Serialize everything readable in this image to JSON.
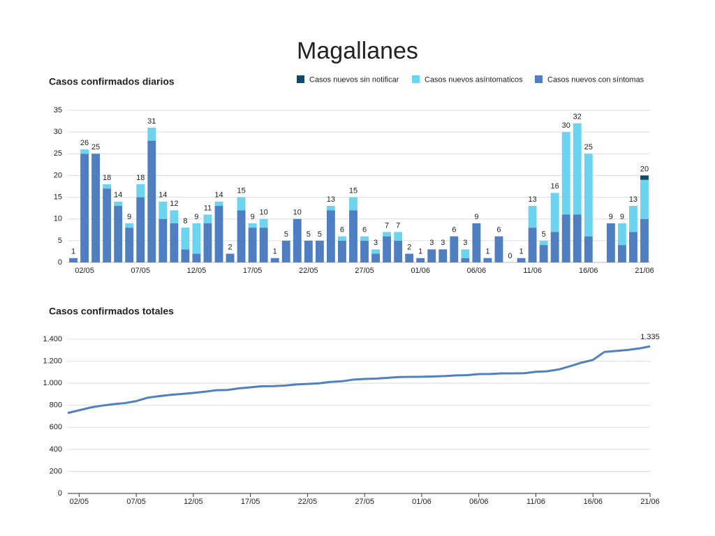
{
  "title": "Magallanes",
  "chart_data": [
    {
      "type": "stacked-bar",
      "title": "Casos confirmados diarios",
      "categories": [
        null,
        "02/05",
        null,
        null,
        null,
        null,
        "07/05",
        null,
        null,
        null,
        null,
        "12/05",
        null,
        null,
        null,
        null,
        "17/05",
        null,
        null,
        null,
        null,
        "22/05",
        null,
        null,
        null,
        null,
        "27/05",
        null,
        null,
        null,
        null,
        "01/06",
        null,
        null,
        null,
        null,
        "06/06",
        null,
        null,
        null,
        null,
        "11/06",
        null,
        null,
        null,
        null,
        "16/06",
        null,
        null,
        null,
        null,
        "21/06"
      ],
      "series": [
        {
          "name": "Casos nuevos sin notificar",
          "color": "#0d4a6b",
          "values": [
            0,
            0,
            0,
            0,
            0,
            0,
            0,
            0,
            0,
            0,
            0,
            0,
            0,
            0,
            0,
            0,
            0,
            0,
            0,
            0,
            0,
            0,
            0,
            0,
            0,
            0,
            0,
            0,
            0,
            0,
            0,
            0,
            0,
            0,
            0,
            0,
            0,
            0,
            0,
            0,
            0,
            0,
            0,
            0,
            0,
            0,
            0,
            null,
            0,
            0,
            0,
            1
          ]
        },
        {
          "name": "Casos nuevos asíntomaticos",
          "color": "#6dd4ef",
          "values": [
            0,
            1,
            0,
            1,
            1,
            1,
            3,
            3,
            4,
            3,
            5,
            7,
            2,
            1,
            0,
            3,
            1,
            2,
            0,
            0,
            0,
            0,
            0,
            1,
            1,
            3,
            1,
            1,
            1,
            2,
            0,
            0,
            0,
            0,
            0,
            2,
            0,
            0,
            0,
            0,
            0,
            5,
            1,
            9,
            19,
            21,
            19,
            null,
            0,
            5,
            6,
            9
          ]
        },
        {
          "name": "Casos nuevos con síntomas",
          "color": "#4f7fc0",
          "values": [
            1,
            25,
            25,
            17,
            13,
            8,
            15,
            28,
            10,
            9,
            3,
            2,
            9,
            13,
            2,
            12,
            8,
            8,
            1,
            5,
            10,
            5,
            5,
            12,
            5,
            12,
            5,
            2,
            6,
            5,
            2,
            1,
            3,
            3,
            6,
            1,
            9,
            1,
            6,
            0,
            1,
            8,
            4,
            7,
            11,
            11,
            6,
            null,
            9,
            4,
            7,
            10
          ]
        }
      ],
      "totals": [
        1,
        26,
        25,
        18,
        14,
        9,
        18,
        31,
        14,
        12,
        8,
        9,
        11,
        14,
        2,
        15,
        9,
        10,
        1,
        5,
        10,
        5,
        5,
        13,
        6,
        15,
        6,
        3,
        7,
        7,
        2,
        1,
        3,
        3,
        6,
        3,
        9,
        1,
        6,
        0,
        1,
        13,
        5,
        16,
        30,
        32,
        25,
        null,
        9,
        9,
        13,
        20
      ],
      "ylim": [
        0,
        35
      ],
      "yticks": [
        0,
        5,
        10,
        15,
        20,
        25,
        30,
        35
      ],
      "grid": true,
      "legend": "top-right"
    },
    {
      "type": "line",
      "title": "Casos confirmados totales",
      "categories": [
        null,
        "02/05",
        null,
        null,
        null,
        null,
        "07/05",
        null,
        null,
        null,
        null,
        "12/05",
        null,
        null,
        null,
        null,
        "17/05",
        null,
        null,
        null,
        null,
        "22/05",
        null,
        null,
        null,
        null,
        "27/05",
        null,
        null,
        null,
        null,
        "01/06",
        null,
        null,
        null,
        null,
        "06/06",
        null,
        null,
        null,
        null,
        "11/06",
        null,
        null,
        null,
        null,
        "16/06",
        null,
        null,
        null,
        null,
        "21/06"
      ],
      "color": "#4f81bd",
      "values": [
        730,
        755,
        780,
        797,
        810,
        820,
        838,
        869,
        883,
        895,
        903,
        912,
        923,
        937,
        939,
        954,
        963,
        973,
        974,
        979,
        989,
        994,
        999,
        1012,
        1018,
        1033,
        1039,
        1042,
        1049,
        1056,
        1058,
        1059,
        1062,
        1065,
        1071,
        1074,
        1083,
        1084,
        1090,
        1090,
        1091,
        1104,
        1109,
        1125,
        1155,
        1187,
        1212,
        1284,
        1293,
        1302,
        1315,
        1335
      ],
      "value_labels": [
        null,
        null,
        null,
        null,
        null,
        null,
        null,
        null,
        null,
        null,
        null,
        null,
        null,
        null,
        null,
        null,
        null,
        null,
        null,
        null,
        null,
        null,
        null,
        null,
        null,
        null,
        null,
        null,
        null,
        null,
        null,
        null,
        null,
        null,
        null,
        null,
        null,
        null,
        null,
        null,
        null,
        null,
        null,
        null,
        null,
        null,
        null,
        null,
        null,
        null,
        null,
        "1.335"
      ],
      "ylim": [
        0,
        1400
      ],
      "yticks": [
        0,
        200,
        400,
        600,
        800,
        {
          "value": 1000,
          "label": "1.000"
        },
        {
          "value": 1200,
          "label": "1.200"
        },
        {
          "value": 1400,
          "label": "1.400"
        }
      ],
      "grid": true
    }
  ]
}
